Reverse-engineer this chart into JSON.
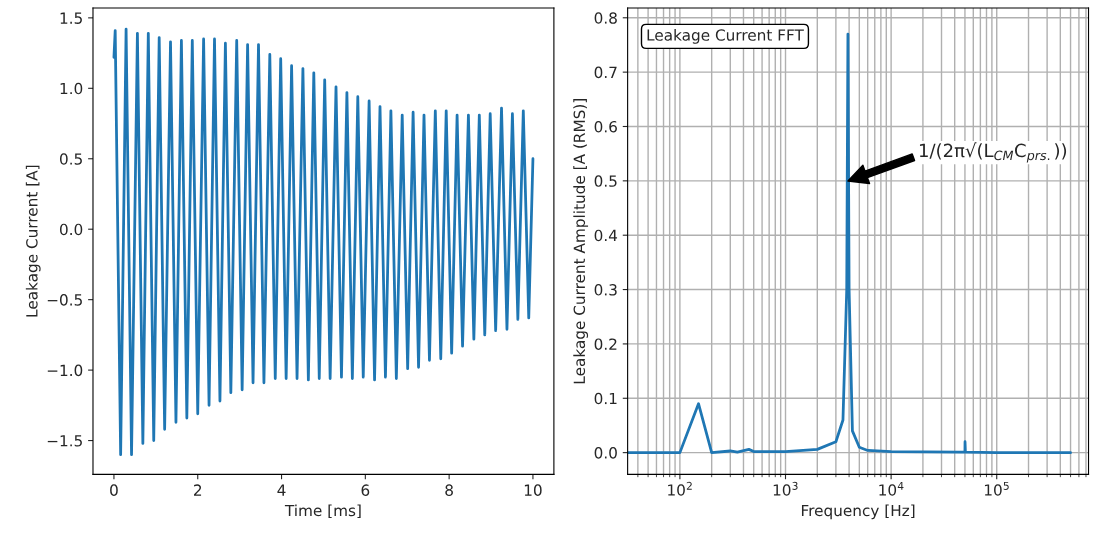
{
  "chart_data": [
    {
      "type": "line",
      "xlabel": "Time [ms]",
      "ylabel": "Leakage Current [A]",
      "x": [
        0,
        0.03,
        0.16,
        0.29,
        0.42,
        0.56,
        0.69,
        0.82,
        0.95,
        1.08,
        1.21,
        1.35,
        1.48,
        1.61,
        1.74,
        1.87,
        2.0,
        2.14,
        2.27,
        2.4,
        2.53,
        2.66,
        2.79,
        2.93,
        3.06,
        3.19,
        3.32,
        3.45,
        3.58,
        3.72,
        3.85,
        3.98,
        4.11,
        4.24,
        4.37,
        4.51,
        4.64,
        4.77,
        4.9,
        5.03,
        5.16,
        5.3,
        5.43,
        5.56,
        5.69,
        5.82,
        5.95,
        6.09,
        6.22,
        6.35,
        6.48,
        6.61,
        6.74,
        6.88,
        7.01,
        7.14,
        7.27,
        7.4,
        7.53,
        7.67,
        7.8,
        7.93,
        8.06,
        8.19,
        8.32,
        8.46,
        8.59,
        8.72,
        8.85,
        8.98,
        9.11,
        9.25,
        9.38,
        9.51,
        9.64,
        9.77,
        9.9,
        10.0
      ],
      "series": [
        {
          "color": "#1f77b4",
          "values": [
            1.22,
            1.41,
            -1.6,
            1.42,
            -1.6,
            1.39,
            -1.52,
            1.39,
            -1.5,
            1.36,
            -1.42,
            1.33,
            -1.37,
            1.34,
            -1.34,
            1.34,
            -1.31,
            1.35,
            -1.25,
            1.35,
            -1.22,
            1.32,
            -1.16,
            1.34,
            -1.14,
            1.31,
            -1.09,
            1.31,
            -1.09,
            1.24,
            -1.06,
            1.21,
            -1.06,
            1.16,
            -1.06,
            1.14,
            -1.07,
            1.11,
            -1.06,
            1.06,
            -1.06,
            1.01,
            -1.05,
            0.97,
            -1.06,
            0.94,
            -1.05,
            0.91,
            -1.07,
            0.87,
            -1.05,
            0.84,
            -1.06,
            0.81,
            -0.99,
            0.83,
            -0.98,
            0.81,
            -0.93,
            0.84,
            -0.92,
            0.84,
            -0.88,
            0.81,
            -0.83,
            0.81,
            -0.78,
            0.81,
            -0.75,
            0.82,
            -0.72,
            0.86,
            -0.71,
            0.82,
            -0.64,
            0.84,
            -0.63,
            0.5
          ]
        }
      ],
      "xlim": [
        -0.5,
        10.5
      ],
      "xticks": [
        0,
        2,
        4,
        6,
        8,
        10
      ],
      "ylim": [
        -1.74,
        1.57
      ],
      "yticks": [
        {
          "value": -1.5,
          "label": "−1.5"
        },
        {
          "value": -1.0,
          "label": "−1.0"
        },
        {
          "value": -0.5,
          "label": "−0.5"
        },
        {
          "value": 0,
          "label": "0.0"
        },
        0.5,
        {
          "value": 1,
          "label": "1.0"
        },
        1.5
      ],
      "grid": false
    },
    {
      "type": "line",
      "xlabel": "Frequency [Hz]",
      "ylabel": "Leakage Current Amplitude [A (RMS)]",
      "log": "x",
      "x": [
        32,
        100,
        150,
        200,
        300,
        350,
        450,
        500,
        1000,
        2000,
        3000,
        3500,
        3800,
        3900,
        4000,
        4300,
        5000,
        6000,
        10000,
        45000,
        50000,
        50100,
        50500,
        100000,
        500000
      ],
      "series": [
        {
          "color": "#1f77b4",
          "values": [
            0,
            0,
            0.09,
            0,
            0.003,
            0.001,
            0.006,
            0.002,
            0.002,
            0.006,
            0.02,
            0.06,
            0.3,
            0.77,
            0.3,
            0.04,
            0.01,
            0.004,
            0.002,
            0.001,
            0.001,
            0.02,
            0.001,
            0,
            0
          ]
        }
      ],
      "xlim": [
        32,
        740000
      ],
      "xticks": [
        {
          "value": 100,
          "label": "10$^{2}$"
        },
        {
          "value": 1000,
          "label": "10$^{3}$"
        },
        {
          "value": 10000,
          "label": "10$^{4}$"
        },
        {
          "value": 100000,
          "label": "10$^{5}$"
        }
      ],
      "ylim": [
        -0.04,
        0.818
      ],
      "yticks": [
        {
          "value": 0,
          "label": "0.0"
        },
        0.1,
        0.2,
        0.3,
        0.4,
        0.5,
        0.6,
        0.7,
        0.8
      ],
      "grid": true,
      "annotations": [
        "Leakage Current FFT",
        "1/(2π√(L$_{CM}$C$_{prs.}$))"
      ]
    }
  ]
}
